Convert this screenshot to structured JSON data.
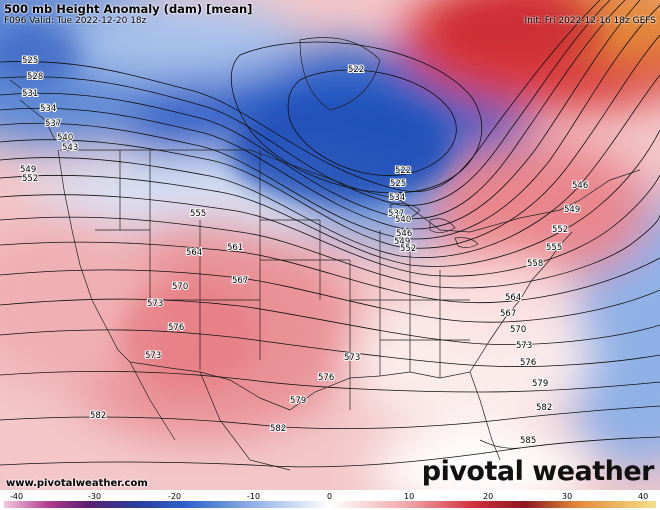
{
  "header": {
    "title": "500 mb Height Anomaly (dam) [mean]",
    "valid": "F096 Valid: Tue 2022-12-20 18z",
    "init": "Init: Fri 2022-12-16 18z GEFS"
  },
  "footer": {
    "url": "www.pivotalweather.com",
    "brand": "pivotal weather"
  },
  "colorbar": {
    "ticks": [
      "-40",
      "-30",
      "-20",
      "-10",
      "0",
      "10",
      "20",
      "30",
      "40"
    ]
  },
  "contours": {
    "labels": [
      "525",
      "528",
      "531",
      "534",
      "537",
      "540",
      "543",
      "549",
      "552",
      "555",
      "561",
      "564",
      "567",
      "570",
      "573",
      "576",
      "579",
      "582",
      "522",
      "546",
      "558",
      "585"
    ]
  },
  "colors": {
    "negative": "#1e4fb8",
    "positive": "#d2303a",
    "neutral": "#ffffff"
  }
}
